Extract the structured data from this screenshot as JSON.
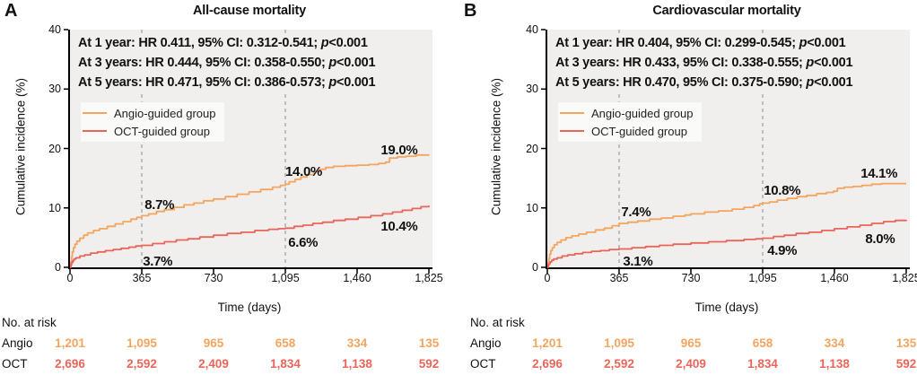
{
  "figure": {
    "colors": {
      "angio": "#F3A55F",
      "oct": "#E9655A",
      "plot_background": "#F0EFED",
      "dashed_line": "#9E9E9E",
      "axis": "#000000",
      "text": "#111111"
    }
  },
  "chart_data": [
    {
      "type": "line",
      "panel_label": "A",
      "title": "All-cause mortality",
      "xlabel": "Time (days)",
      "ylabel": "Cumulative incidence (%)",
      "xlim": [
        0,
        1825
      ],
      "ylim": [
        0,
        40
      ],
      "x_ticks": [
        0,
        365,
        730,
        1095,
        1460,
        1825
      ],
      "x_tick_labels": [
        "0",
        "365",
        "730",
        "1,095",
        "1,460",
        "1,825"
      ],
      "y_ticks": [
        0,
        10,
        20,
        30,
        40
      ],
      "y_tick_labels": [
        "0",
        "10",
        "20",
        "30",
        "40"
      ],
      "grid": false,
      "dashed_vlines": [
        365,
        1095
      ],
      "legend_position": "upper-left",
      "hr_annotations": [
        {
          "text": "At 1 year: HR 0.411, 95% CI: 0.312-0.541; ",
          "p": "p",
          "value": "<0.001"
        },
        {
          "text": "At 3 years: HR 0.444, 95% CI: 0.358-0.550; ",
          "p": "p",
          "value": "<0.001"
        },
        {
          "text": "At 5 years: HR 0.471, 95% CI: 0.386-0.573; ",
          "p": "p",
          "value": "<0.001"
        }
      ],
      "series": [
        {
          "name": "Angio-guided group",
          "color": "#F3A55F",
          "milestones": {
            "day_365": "8.7%",
            "day_1095": "14.0%",
            "day_1825": "19.0%"
          },
          "points": [
            [
              0,
              0
            ],
            [
              4,
              0.9
            ],
            [
              8,
              1.8
            ],
            [
              12,
              2.6
            ],
            [
              18,
              3.3
            ],
            [
              25,
              3.9
            ],
            [
              35,
              4.4
            ],
            [
              50,
              4.9
            ],
            [
              70,
              5.4
            ],
            [
              90,
              5.8
            ],
            [
              120,
              6.2
            ],
            [
              150,
              6.5
            ],
            [
              190,
              6.9
            ],
            [
              230,
              7.3
            ],
            [
              270,
              7.7
            ],
            [
              310,
              8.1
            ],
            [
              340,
              8.4
            ],
            [
              365,
              8.7
            ],
            [
              400,
              9.0
            ],
            [
              440,
              9.4
            ],
            [
              480,
              9.7
            ],
            [
              530,
              10.1
            ],
            [
              580,
              10.5
            ],
            [
              630,
              10.8
            ],
            [
              680,
              11.2
            ],
            [
              730,
              11.5
            ],
            [
              790,
              11.9
            ],
            [
              850,
              12.3
            ],
            [
              910,
              12.7
            ],
            [
              970,
              13.1
            ],
            [
              1030,
              13.5
            ],
            [
              1070,
              13.8
            ],
            [
              1095,
              14.0
            ],
            [
              1115,
              14.4
            ],
            [
              1145,
              14.8
            ],
            [
              1175,
              15.2
            ],
            [
              1205,
              15.6
            ],
            [
              1240,
              16.1
            ],
            [
              1270,
              16.5
            ],
            [
              1300,
              16.8
            ],
            [
              1340,
              17.0
            ],
            [
              1400,
              17.1
            ],
            [
              1460,
              17.2
            ],
            [
              1520,
              17.3
            ],
            [
              1570,
              17.5
            ],
            [
              1605,
              17.7
            ],
            [
              1625,
              18.4
            ],
            [
              1665,
              18.6
            ],
            [
              1710,
              18.7
            ],
            [
              1760,
              18.9
            ],
            [
              1825,
              19.0
            ]
          ]
        },
        {
          "name": "OCT-guided group",
          "color": "#E9655A",
          "milestones": {
            "day_365": "3.7%",
            "day_1095": "6.6%",
            "day_1825": "10.4%"
          },
          "points": [
            [
              0,
              0
            ],
            [
              4,
              0.4
            ],
            [
              8,
              0.8
            ],
            [
              14,
              1.1
            ],
            [
              20,
              1.4
            ],
            [
              30,
              1.6
            ],
            [
              50,
              1.9
            ],
            [
              75,
              2.1
            ],
            [
              105,
              2.4
            ],
            [
              140,
              2.6
            ],
            [
              180,
              2.8
            ],
            [
              220,
              3.0
            ],
            [
              260,
              3.2
            ],
            [
              300,
              3.4
            ],
            [
              335,
              3.6
            ],
            [
              365,
              3.7
            ],
            [
              420,
              4.0
            ],
            [
              480,
              4.3
            ],
            [
              540,
              4.6
            ],
            [
              600,
              4.8
            ],
            [
              660,
              5.1
            ],
            [
              730,
              5.4
            ],
            [
              800,
              5.7
            ],
            [
              870,
              5.9
            ],
            [
              940,
              6.2
            ],
            [
              1010,
              6.4
            ],
            [
              1060,
              6.5
            ],
            [
              1095,
              6.6
            ],
            [
              1140,
              6.9
            ],
            [
              1185,
              7.1
            ],
            [
              1235,
              7.4
            ],
            [
              1285,
              7.6
            ],
            [
              1340,
              7.9
            ],
            [
              1400,
              8.1
            ],
            [
              1465,
              8.4
            ],
            [
              1530,
              8.7
            ],
            [
              1590,
              9.0
            ],
            [
              1640,
              9.3
            ],
            [
              1690,
              9.6
            ],
            [
              1740,
              9.9
            ],
            [
              1785,
              10.2
            ],
            [
              1825,
              10.4
            ]
          ]
        }
      ],
      "point_labels": [
        {
          "text": "8.7%",
          "x": 0.208,
          "y": 9.8
        },
        {
          "text": "3.7%",
          "x": 0.203,
          "y": 0.3
        },
        {
          "text": "14.0%",
          "x": 0.6,
          "y": 15.4
        },
        {
          "text": "6.6%",
          "x": 0.608,
          "y": 3.5
        },
        {
          "text": "19.0%",
          "x": 0.866,
          "y": 19.0
        },
        {
          "text": "10.4%",
          "x": 0.866,
          "y": 6.2
        }
      ],
      "number_at_risk": {
        "title": "No. at risk",
        "rows": [
          {
            "label": "Angio",
            "color": "#F3A55F",
            "values": [
              "1,201",
              "1,095",
              "965",
              "658",
              "334",
              "135"
            ]
          },
          {
            "label": "OCT",
            "color": "#E9655A",
            "values": [
              "2,696",
              "2,592",
              "2,409",
              "1,834",
              "1,138",
              "592"
            ]
          }
        ]
      }
    },
    {
      "type": "line",
      "panel_label": "B",
      "title": "Cardiovascular mortality",
      "xlabel": "Time (days)",
      "ylabel": "Cumulative incidence (%)",
      "xlim": [
        0,
        1825
      ],
      "ylim": [
        0,
        40
      ],
      "x_ticks": [
        0,
        365,
        730,
        1095,
        1460,
        1825
      ],
      "x_tick_labels": [
        "0",
        "365",
        "730",
        "1,095",
        "1,460",
        "1,825"
      ],
      "y_ticks": [
        0,
        10,
        20,
        30,
        40
      ],
      "y_tick_labels": [
        "0",
        "10",
        "20",
        "30",
        "40"
      ],
      "grid": false,
      "dashed_vlines": [
        365,
        1095
      ],
      "legend_position": "upper-left",
      "hr_annotations": [
        {
          "text": "At 1 year: HR 0.404, 95% CI: 0.299-0.545; ",
          "p": "p",
          "value": "<0.001"
        },
        {
          "text": "At 3 years: HR 0.433, 95% CI: 0.338-0.555; ",
          "p": "p",
          "value": "<0.001"
        },
        {
          "text": "At 5 years: HR 0.470, 95% CI: 0.375-0.590; ",
          "p": "p",
          "value": "<0.001"
        }
      ],
      "series": [
        {
          "name": "Angio-guided group",
          "color": "#F3A55F",
          "milestones": {
            "day_365": "7.4%",
            "day_1095": "10.8%",
            "day_1825": "14.1%"
          },
          "points": [
            [
              0,
              0
            ],
            [
              4,
              0.8
            ],
            [
              8,
              1.5
            ],
            [
              12,
              2.2
            ],
            [
              18,
              2.8
            ],
            [
              25,
              3.3
            ],
            [
              35,
              3.8
            ],
            [
              50,
              4.2
            ],
            [
              70,
              4.6
            ],
            [
              95,
              5.0
            ],
            [
              125,
              5.3
            ],
            [
              160,
              5.6
            ],
            [
              200,
              5.9
            ],
            [
              245,
              6.3
            ],
            [
              290,
              6.6
            ],
            [
              330,
              7.0
            ],
            [
              365,
              7.4
            ],
            [
              410,
              7.6
            ],
            [
              460,
              7.8
            ],
            [
              520,
              8.1
            ],
            [
              580,
              8.3
            ],
            [
              640,
              8.6
            ],
            [
              700,
              8.8
            ],
            [
              730,
              9.0
            ],
            [
              800,
              9.3
            ],
            [
              870,
              9.5
            ],
            [
              940,
              9.8
            ],
            [
              1000,
              10.1
            ],
            [
              1050,
              10.4
            ],
            [
              1080,
              10.7
            ],
            [
              1095,
              10.8
            ],
            [
              1130,
              11.0
            ],
            [
              1170,
              11.3
            ],
            [
              1220,
              11.6
            ],
            [
              1270,
              11.9
            ],
            [
              1320,
              12.1
            ],
            [
              1370,
              12.4
            ],
            [
              1420,
              12.6
            ],
            [
              1455,
              12.8
            ],
            [
              1475,
              13.3
            ],
            [
              1510,
              13.5
            ],
            [
              1555,
              13.6
            ],
            [
              1600,
              13.8
            ],
            [
              1650,
              14.0
            ],
            [
              1700,
              14.1
            ],
            [
              1825,
              14.1
            ]
          ]
        },
        {
          "name": "OCT-guided group",
          "color": "#E9655A",
          "milestones": {
            "day_365": "3.1%",
            "day_1095": "4.9%",
            "day_1825": "8.0%"
          },
          "points": [
            [
              0,
              0
            ],
            [
              4,
              0.3
            ],
            [
              8,
              0.6
            ],
            [
              14,
              0.9
            ],
            [
              22,
              1.2
            ],
            [
              32,
              1.4
            ],
            [
              50,
              1.6
            ],
            [
              75,
              1.9
            ],
            [
              105,
              2.1
            ],
            [
              140,
              2.3
            ],
            [
              180,
              2.5
            ],
            [
              225,
              2.7
            ],
            [
              270,
              2.8
            ],
            [
              315,
              3.0
            ],
            [
              365,
              3.1
            ],
            [
              430,
              3.3
            ],
            [
              500,
              3.5
            ],
            [
              570,
              3.7
            ],
            [
              640,
              3.9
            ],
            [
              730,
              4.1
            ],
            [
              820,
              4.3
            ],
            [
              910,
              4.5
            ],
            [
              1000,
              4.7
            ],
            [
              1060,
              4.8
            ],
            [
              1095,
              4.9
            ],
            [
              1150,
              5.2
            ],
            [
              1205,
              5.4
            ],
            [
              1265,
              5.7
            ],
            [
              1330,
              5.9
            ],
            [
              1395,
              6.2
            ],
            [
              1460,
              6.5
            ],
            [
              1525,
              6.8
            ],
            [
              1590,
              7.1
            ],
            [
              1650,
              7.4
            ],
            [
              1710,
              7.7
            ],
            [
              1770,
              7.9
            ],
            [
              1825,
              8.0
            ]
          ]
        }
      ],
      "point_labels": [
        {
          "text": "7.4%",
          "x": 0.206,
          "y": 8.6
        },
        {
          "text": "3.1%",
          "x": 0.211,
          "y": 0.3
        },
        {
          "text": "10.8%",
          "x": 0.603,
          "y": 12.2
        },
        {
          "text": "4.9%",
          "x": 0.613,
          "y": 2.1
        },
        {
          "text": "14.1%",
          "x": 0.873,
          "y": 15.1
        },
        {
          "text": "8.0%",
          "x": 0.886,
          "y": 4.1
        }
      ],
      "number_at_risk": {
        "title": "No. at risk",
        "rows": [
          {
            "label": "Angio",
            "color": "#F3A55F",
            "values": [
              "1,201",
              "1,095",
              "965",
              "658",
              "334",
              "135"
            ]
          },
          {
            "label": "OCT",
            "color": "#E9655A",
            "values": [
              "2,696",
              "2,592",
              "2,409",
              "1,834",
              "1,138",
              "592"
            ]
          }
        ]
      }
    }
  ]
}
